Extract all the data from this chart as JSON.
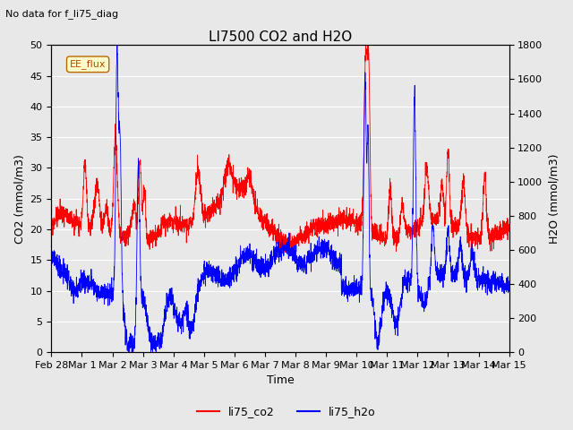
{
  "title": "LI7500 CO2 and H2O",
  "subtitle": "No data for f_li75_diag",
  "xlabel": "Time",
  "ylabel_left": "CO2 (mmol/m3)",
  "ylabel_right": "H2O (mmol/m3)",
  "ylim_left": [
    0,
    50
  ],
  "ylim_right": [
    0,
    1800
  ],
  "annotation": "EE_flux",
  "legend": [
    "li75_co2",
    "li75_h2o"
  ],
  "xtick_labels": [
    "Feb 28",
    "Mar 1",
    "Mar 2",
    "Mar 3",
    "Mar 4",
    "Mar 5",
    "Mar 6",
    "Mar 7",
    "Mar 8",
    "Mar 9",
    "Mar 10",
    "Mar 11",
    "Mar 12",
    "Mar 13",
    "Mar 14",
    "Mar 15"
  ],
  "background_color": "#e8e8e8",
  "grid_color": "#ffffff",
  "fig_bg": "#e8e8e8",
  "yticks_left": [
    0,
    5,
    10,
    15,
    20,
    25,
    30,
    35,
    40,
    45,
    50
  ],
  "yticks_right": [
    0,
    200,
    400,
    600,
    800,
    1000,
    1200,
    1400,
    1600,
    1800
  ]
}
